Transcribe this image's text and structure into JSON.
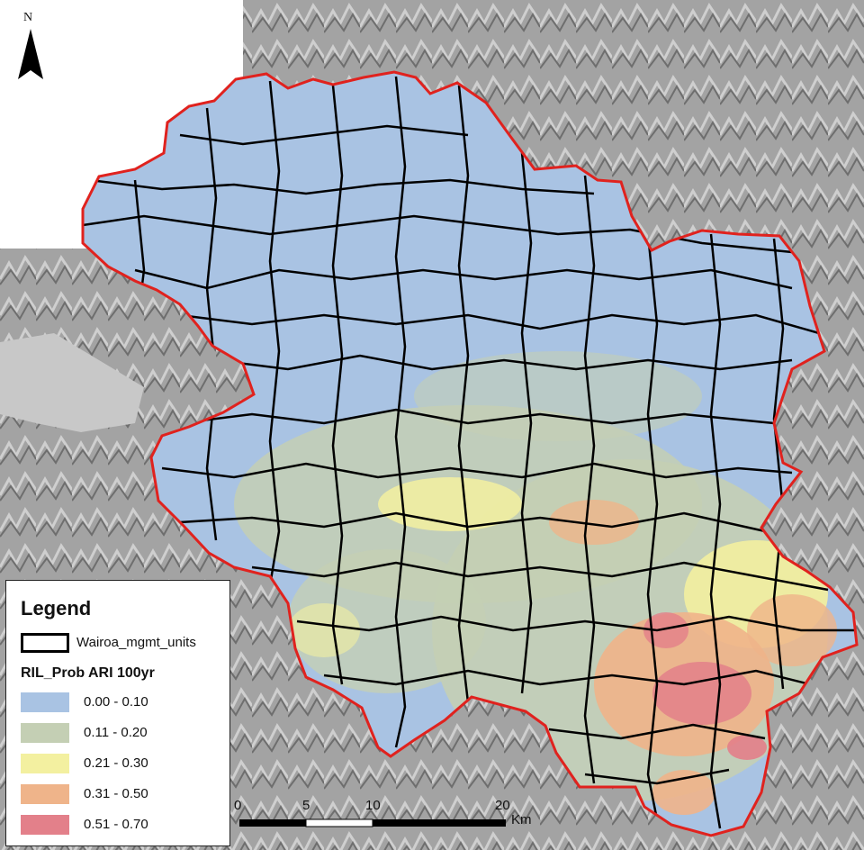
{
  "north_arrow": {
    "label": "N"
  },
  "legend": {
    "title": "Legend",
    "units_label": "Wairoa_mgmt_units",
    "prob_title": "RIL_Prob ARI 100yr",
    "classes": [
      {
        "label": "0.00 - 0.10",
        "color": "#a9c3e3"
      },
      {
        "label": "0.11 - 0.20",
        "color": "#c4cfb4"
      },
      {
        "label": "0.21 - 0.30",
        "color": "#f3f0a0"
      },
      {
        "label": "0.31 - 0.50",
        "color": "#efb48a"
      },
      {
        "label": "0.51 - 0.70",
        "color": "#e3808a"
      }
    ]
  },
  "scale": {
    "ticks": [
      "0",
      "5",
      "10",
      "20"
    ],
    "unit": "Km"
  },
  "colors": {
    "boundary": "#e0221e",
    "units": "#000000",
    "hillshade": "#9a9a9a"
  }
}
